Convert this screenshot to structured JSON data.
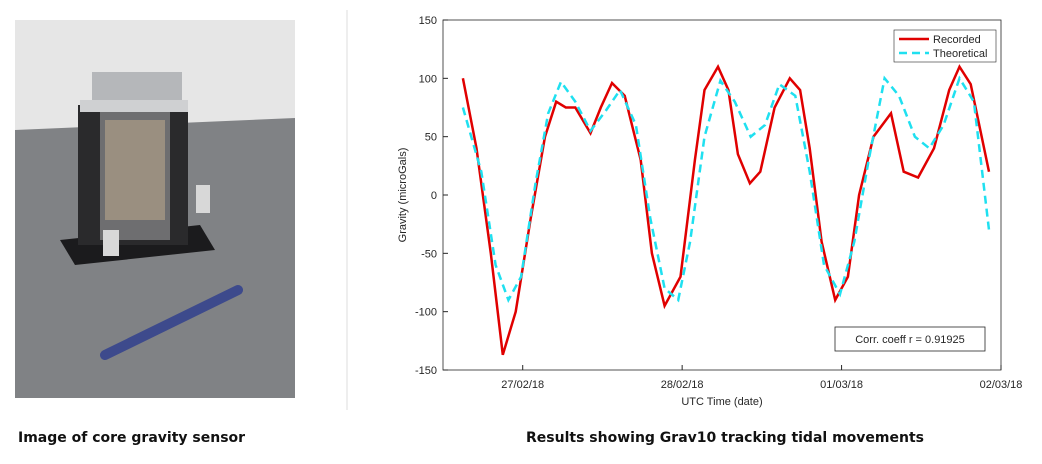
{
  "photo": {
    "caption": "Image of core gravity sensor"
  },
  "chart_data": {
    "type": "line",
    "caption": "Results showing Grav10 tracking tidal movements",
    "xlabel": "UTC Time (date)",
    "ylabel": "Gravity (microGals)",
    "annotation": "Corr. coeff r = 0.91925",
    "legend": "upper-right",
    "xlim": [
      -0.5,
      3.0
    ],
    "ylim": [
      -150,
      150
    ],
    "xticks": [
      {
        "value": 0,
        "label": "27/02/18"
      },
      {
        "value": 1,
        "label": "28/02/18"
      },
      {
        "value": 2,
        "label": "01/03/18"
      },
      {
        "value": 3,
        "label": "02/03/18"
      }
    ],
    "yticks": [
      -150,
      -100,
      -50,
      0,
      50,
      100,
      150
    ],
    "series": [
      {
        "name": "Recorded",
        "color": "#e00000",
        "dash": false,
        "x": [
          -0.375,
          -0.29,
          -0.2,
          -0.125,
          -0.044,
          0.05,
          0.14,
          0.21,
          0.27,
          0.33,
          0.425,
          0.49,
          0.56,
          0.64,
          0.74,
          0.81,
          0.89,
          0.99,
          1.08,
          1.14,
          1.225,
          1.29,
          1.35,
          1.425,
          1.49,
          1.58,
          1.675,
          1.74,
          1.8,
          1.875,
          1.96,
          2.04,
          2.11,
          2.2,
          2.31,
          2.39,
          2.48,
          2.58,
          2.675,
          2.74,
          2.81,
          2.925
        ],
        "values": [
          100,
          40,
          -50,
          -137,
          -100,
          -20,
          50,
          80,
          75,
          75,
          53,
          75,
          96,
          85,
          30,
          -50,
          -95,
          -70,
          30,
          90,
          110,
          90,
          35,
          10,
          20,
          75,
          100,
          90,
          40,
          -40,
          -90,
          -70,
          0,
          50,
          70,
          20,
          15,
          40,
          90,
          110,
          95,
          20
        ]
      },
      {
        "name": "Theoretical",
        "color": "#1fe0f0",
        "dash": true,
        "x": [
          -0.375,
          -0.26,
          -0.17,
          -0.09,
          -0.01,
          0.08,
          0.16,
          0.24,
          0.33,
          0.425,
          0.52,
          0.61,
          0.71,
          0.8,
          0.89,
          0.975,
          1.05,
          1.14,
          1.24,
          1.33,
          1.43,
          1.52,
          1.61,
          1.71,
          1.8,
          1.89,
          1.99,
          2.08,
          2.17,
          2.27,
          2.36,
          2.46,
          2.55,
          2.64,
          2.74,
          2.83,
          2.925
        ],
        "values": [
          75,
          20,
          -60,
          -90,
          -70,
          10,
          70,
          97,
          80,
          55,
          72,
          90,
          60,
          -20,
          -80,
          -90,
          -40,
          50,
          98,
          80,
          50,
          60,
          95,
          85,
          20,
          -60,
          -85,
          -40,
          30,
          100,
          85,
          50,
          40,
          60,
          100,
          80,
          -30
        ]
      }
    ]
  }
}
